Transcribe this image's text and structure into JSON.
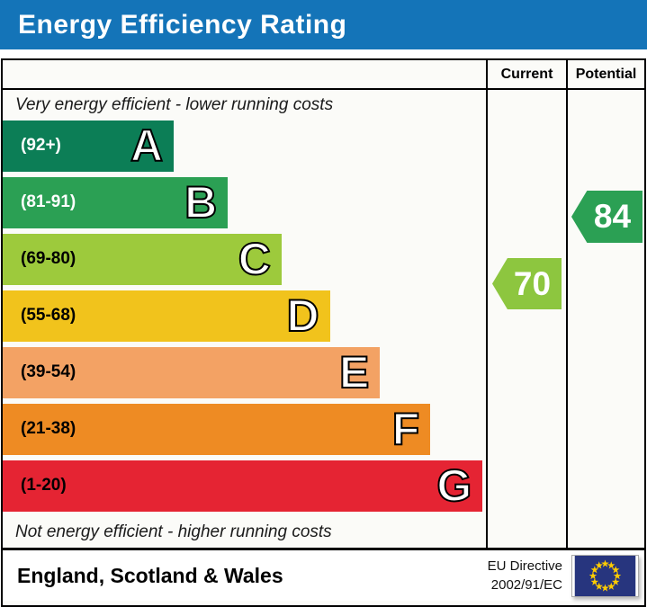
{
  "title": "Energy Efficiency Rating",
  "columns": {
    "current": "Current",
    "potential": "Potential"
  },
  "notes": {
    "top": "Very energy efficient - lower running costs",
    "bottom": "Not energy efficient - higher running costs"
  },
  "footer": {
    "region": "England, Scotland & Wales",
    "directive": [
      "EU Directive",
      "2002/91/EC"
    ],
    "flag_icon": "eu-flag-icon"
  },
  "colors": {
    "title_bar": "#1474b8",
    "border": "#000000",
    "eu_flag_bg": "#27357e",
    "eu_star": "#ffcc00"
  },
  "chart_data": {
    "type": "bar",
    "title": "Energy Efficiency Rating",
    "orientation": "horizontal",
    "scale_range": [
      1,
      100
    ],
    "bands": [
      {
        "letter": "A",
        "range": "(92+)",
        "min": 92,
        "max": 100,
        "color": "#0c7e56",
        "label_color": "#ffffff",
        "width_pct": 35.4
      },
      {
        "letter": "B",
        "range": "(81-91)",
        "min": 81,
        "max": 91,
        "color": "#2ba054",
        "label_color": "#ffffff",
        "width_pct": 46.6
      },
      {
        "letter": "C",
        "range": "(69-80)",
        "min": 69,
        "max": 80,
        "color": "#9dca3c",
        "label_color": "#000000",
        "width_pct": 57.7
      },
      {
        "letter": "D",
        "range": "(55-68)",
        "min": 55,
        "max": 68,
        "color": "#f1c31c",
        "label_color": "#000000",
        "width_pct": 67.7
      },
      {
        "letter": "E",
        "range": "(39-54)",
        "min": 39,
        "max": 54,
        "color": "#f3a264",
        "label_color": "#000000",
        "width_pct": 78.1
      },
      {
        "letter": "F",
        "range": "(21-38)",
        "min": 21,
        "max": 38,
        "color": "#ee8b23",
        "label_color": "#000000",
        "width_pct": 88.5
      },
      {
        "letter": "G",
        "range": "(1-20)",
        "min": 1,
        "max": 20,
        "color": "#e52433",
        "label_color": "#000000",
        "width_pct": 99.3
      }
    ],
    "current": {
      "value": 70,
      "band": "C",
      "color": "#8dc63f"
    },
    "potential": {
      "value": 84,
      "band": "B",
      "color": "#2ba054"
    }
  }
}
